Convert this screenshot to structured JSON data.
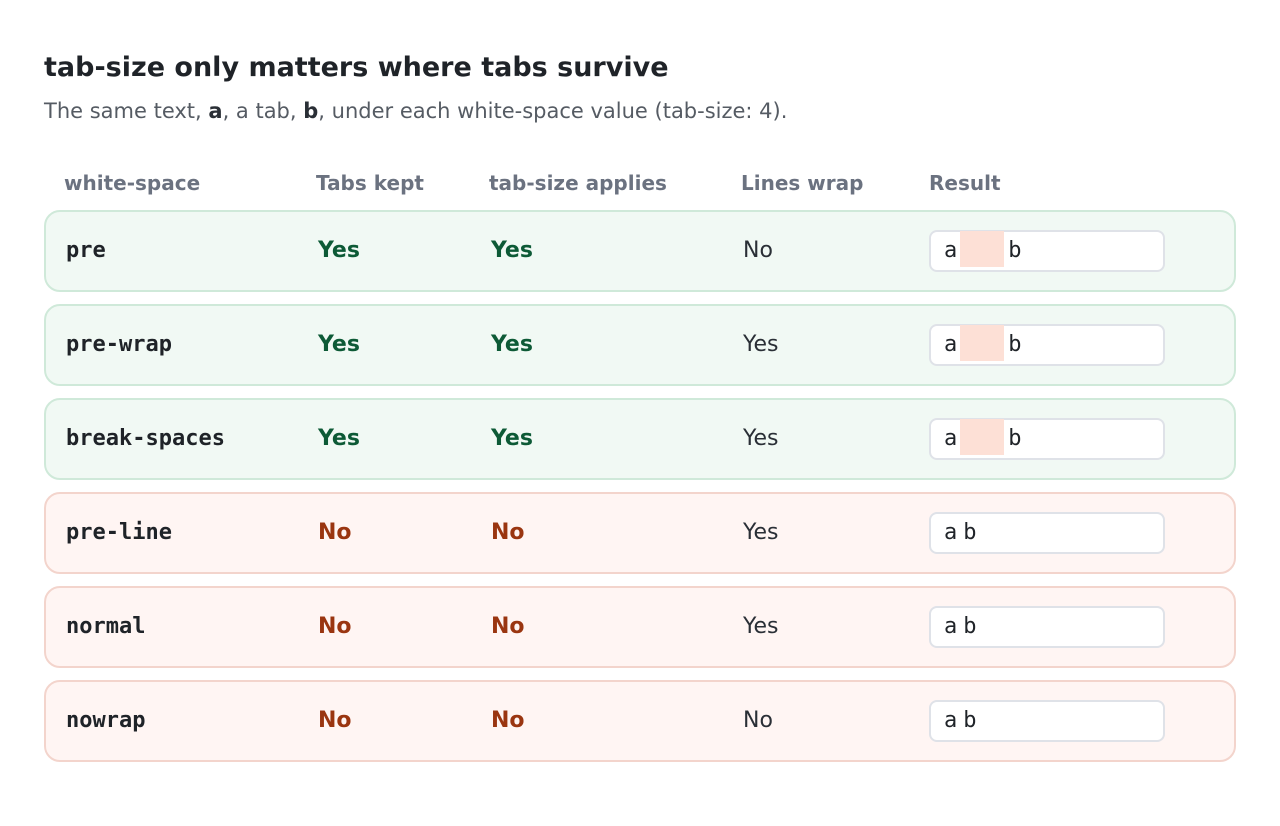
{
  "title": "tab-size only matters where tabs survive",
  "subtitle": {
    "pre": "The same text, ",
    "a": "a",
    "mid1": ", a tab, ",
    "b": "b",
    "post": ", under each white-space value (tab-size: 4)."
  },
  "columns": [
    "white-space",
    "Tabs kept",
    "tab-size applies",
    "Lines wrap",
    "Result"
  ],
  "rows": [
    {
      "value": "pre",
      "tabs_kept": "Yes",
      "tab_size_applies": "Yes",
      "lines_wrap": "No",
      "result_a": "a",
      "result_b": "b",
      "tab_preserved": true
    },
    {
      "value": "pre-wrap",
      "tabs_kept": "Yes",
      "tab_size_applies": "Yes",
      "lines_wrap": "Yes",
      "result_a": "a",
      "result_b": "b",
      "tab_preserved": true
    },
    {
      "value": "break-spaces",
      "tabs_kept": "Yes",
      "tab_size_applies": "Yes",
      "lines_wrap": "Yes",
      "result_a": "a",
      "result_b": "b",
      "tab_preserved": true
    },
    {
      "value": "pre-line",
      "tabs_kept": "No",
      "tab_size_applies": "No",
      "lines_wrap": "Yes",
      "result_a": "a",
      "result_b": "b",
      "tab_preserved": false
    },
    {
      "value": "normal",
      "tabs_kept": "No",
      "tab_size_applies": "No",
      "lines_wrap": "Yes",
      "result_a": "a",
      "result_b": "b",
      "tab_preserved": false
    },
    {
      "value": "nowrap",
      "tabs_kept": "No",
      "tab_size_applies": "No",
      "lines_wrap": "No",
      "result_a": "a",
      "result_b": "b",
      "tab_preserved": false
    }
  ],
  "colors": {
    "kept_row_bg": "#f1f9f4",
    "collapsed_row_bg": "#fff5f3",
    "yes_text": "#0d5a36",
    "no_text": "#9a3510",
    "tab_highlight": "#fde0d6"
  }
}
